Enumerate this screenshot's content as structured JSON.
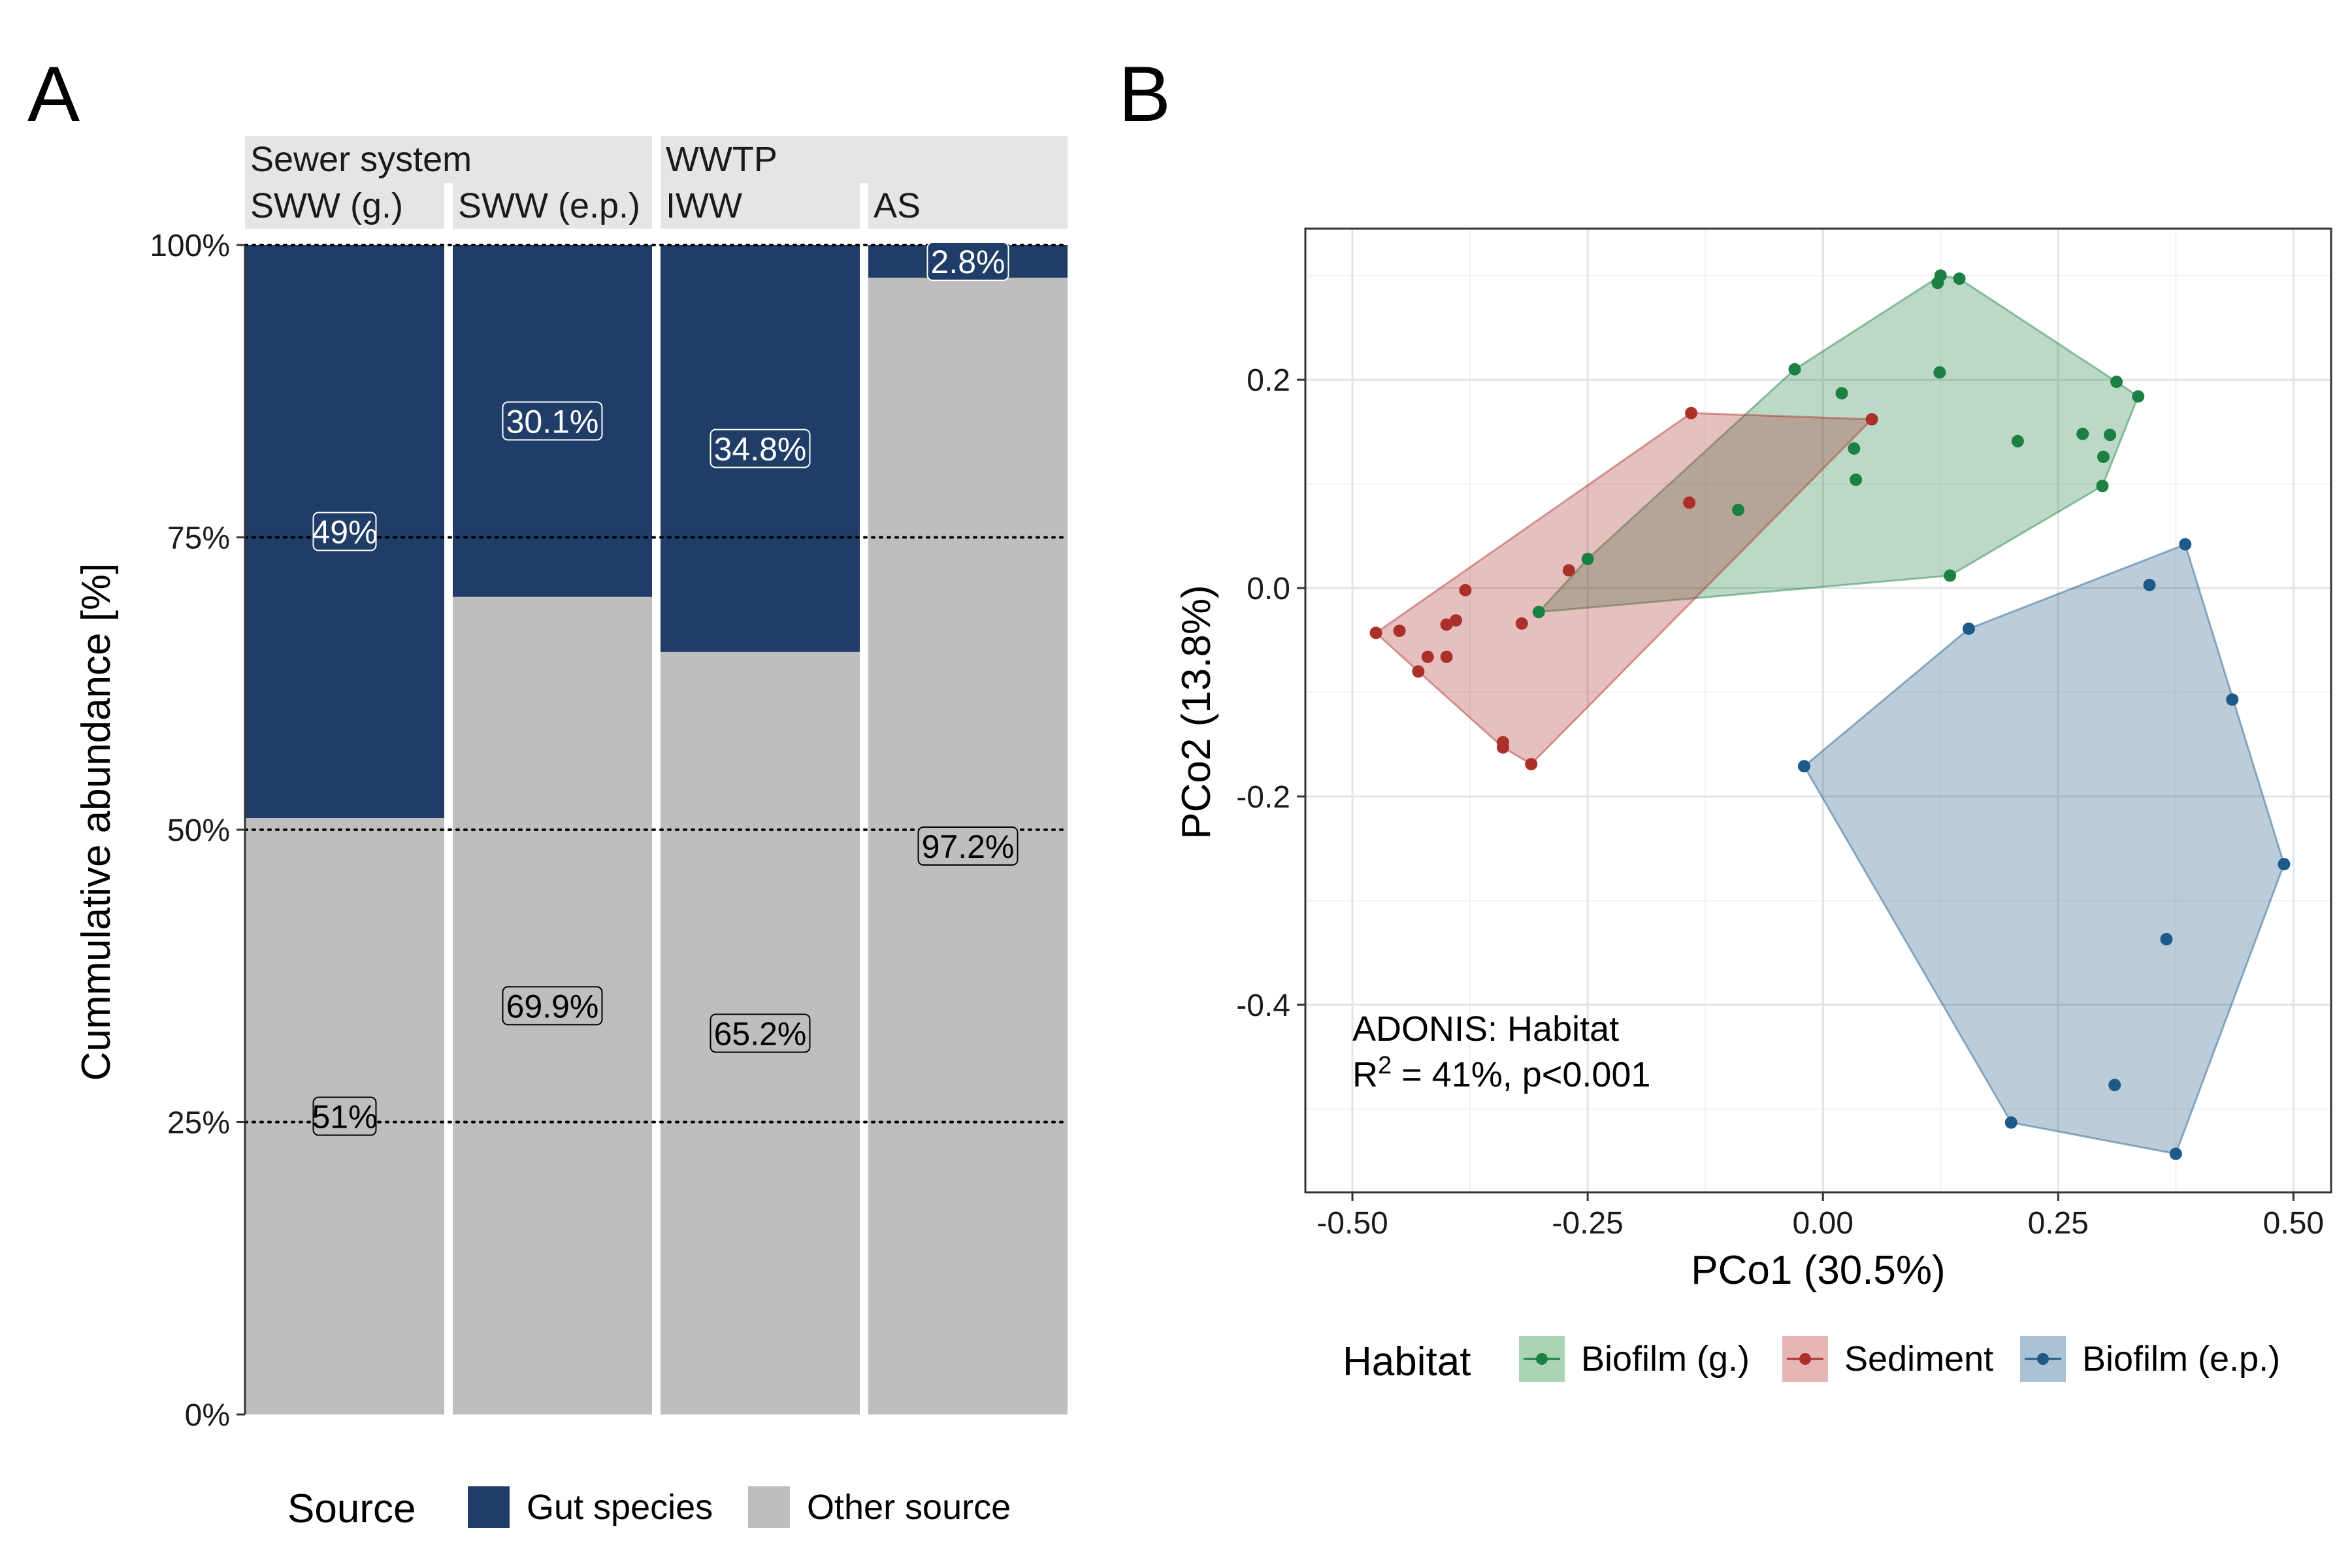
{
  "panel_a": {
    "label": "A",
    "groups": [
      {
        "label": "Sewer system",
        "facets": [
          0,
          1
        ]
      },
      {
        "label": "WWTP",
        "facets": [
          2,
          3
        ]
      }
    ],
    "facets": [
      "SWW (g.)",
      "SWW (e.p.)",
      "IWW",
      "AS"
    ],
    "ylabel": "Cummulative abundance [%]",
    "yticks": [
      "0%",
      "25%",
      "50%",
      "75%",
      "100%"
    ],
    "legend": {
      "title": "Source",
      "items": [
        {
          "label": "Gut species",
          "color": "#1f3d66"
        },
        {
          "label": "Other source",
          "color": "#bebebe"
        }
      ]
    }
  },
  "panel_b": {
    "label": "B",
    "xlabel": "PCo1 (30.5%)",
    "ylabel": "PCo2 (13.8%)",
    "xticks": [
      "-0.50",
      "-0.25",
      "0.00",
      "0.25",
      "0.50"
    ],
    "yticks": [
      "-0.4",
      "-0.2",
      "0.0",
      "0.2"
    ],
    "annotation_line1": "ADONIS: Habitat",
    "annotation_r": "R",
    "annotation_sup": "2",
    "annotation_rest": " = 41%, p<0.001",
    "legend": {
      "title": "Habitat",
      "items": [
        {
          "label": "Biofilm (g.)",
          "color": "#1d8043",
          "fill": "#aad4b5"
        },
        {
          "label": "Sediment",
          "color": "#ac302a",
          "fill": "#e6b6b6"
        },
        {
          "label": "Biofilm (e.p.)",
          "color": "#1e5a87",
          "fill": "#a9c2d6"
        }
      ]
    }
  },
  "chart_data": [
    {
      "type": "bar",
      "stacked": true,
      "categories": [
        "SWW (g.)",
        "SWW (e.p.)",
        "IWW",
        "AS"
      ],
      "series": [
        {
          "name": "Gut species",
          "values": [
            49,
            30.1,
            34.8,
            2.8
          ],
          "labels": [
            "49%",
            "30.1%",
            "34.8%",
            "2.8%"
          ]
        },
        {
          "name": "Other source",
          "values": [
            51,
            69.9,
            65.2,
            97.2
          ],
          "labels": [
            "51%",
            "69.9%",
            "65.2%",
            "97.2%"
          ]
        }
      ],
      "ylabel": "Cummulative abundance [%]",
      "ylim": [
        0,
        100
      ],
      "reference_lines": [
        25,
        50,
        75,
        100
      ],
      "legend_position": "bottom"
    },
    {
      "type": "scatter",
      "xlabel": "PCo1 (30.5%)",
      "ylabel": "PCo2 (13.8%)",
      "xlim": [
        -0.55,
        0.54
      ],
      "ylim": [
        -0.58,
        0.345
      ],
      "grid": true,
      "hulls": true,
      "legend_position": "bottom",
      "series": [
        {
          "name": "Biofilm (g.)",
          "points": [
            [
              0.125,
              0.3
            ],
            [
              0.145,
              0.297
            ],
            [
              0.122,
              0.293
            ],
            [
              0.124,
              0.207
            ],
            [
              -0.03,
              0.21
            ],
            [
              0.02,
              0.187
            ],
            [
              0.312,
              0.198
            ],
            [
              0.335,
              0.184
            ],
            [
              0.207,
              0.141
            ],
            [
              0.276,
              0.148
            ],
            [
              0.305,
              0.147
            ],
            [
              0.298,
              0.126
            ],
            [
              0.033,
              0.134
            ],
            [
              0.035,
              0.104
            ],
            [
              0.297,
              0.098
            ],
            [
              0.135,
              0.012
            ],
            [
              -0.09,
              0.075
            ],
            [
              -0.25,
              0.028
            ],
            [
              -0.302,
              -0.023
            ]
          ]
        },
        {
          "name": "Sediment",
          "points": [
            [
              -0.14,
              0.168
            ],
            [
              0.052,
              0.162
            ],
            [
              -0.142,
              0.082
            ],
            [
              -0.27,
              0.017
            ],
            [
              -0.38,
              -0.002
            ],
            [
              -0.32,
              -0.034
            ],
            [
              -0.39,
              -0.031
            ],
            [
              -0.4,
              -0.035
            ],
            [
              -0.45,
              -0.041
            ],
            [
              -0.475,
              -0.043
            ],
            [
              -0.42,
              -0.066
            ],
            [
              -0.4,
              -0.066
            ],
            [
              -0.43,
              -0.08
            ],
            [
              -0.34,
              -0.148
            ],
            [
              -0.34,
              -0.153
            ],
            [
              -0.31,
              -0.169
            ]
          ]
        },
        {
          "name": "Biofilm (e.p.)",
          "points": [
            [
              0.385,
              0.042
            ],
            [
              0.347,
              0.003
            ],
            [
              0.155,
              -0.039
            ],
            [
              0.435,
              -0.107
            ],
            [
              -0.02,
              -0.171
            ],
            [
              0.49,
              -0.265
            ],
            [
              0.365,
              -0.337
            ],
            [
              0.31,
              -0.477
            ],
            [
              0.2,
              -0.513
            ],
            [
              0.375,
              -0.543
            ]
          ]
        }
      ]
    }
  ]
}
